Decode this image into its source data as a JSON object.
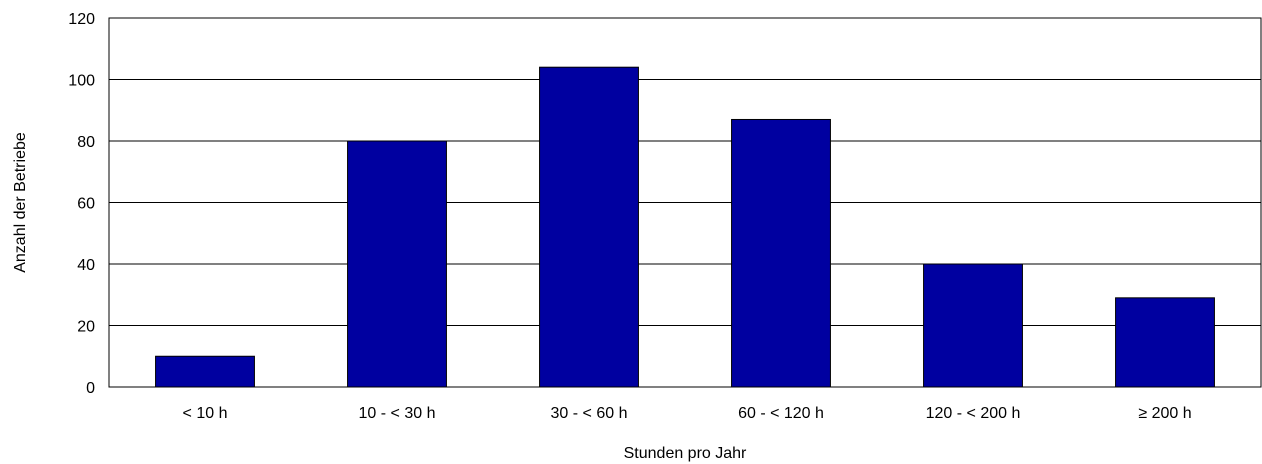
{
  "chart_data": {
    "type": "bar",
    "categories": [
      "< 10 h",
      "10 - < 30 h",
      "30 - < 60 h",
      "60 - < 120 h",
      "120 - < 200 h",
      "≥ 200 h"
    ],
    "values": [
      10,
      80,
      104,
      87,
      40,
      29
    ],
    "xlabel": "Stunden pro Jahr",
    "ylabel": "Anzahl der Betriebe",
    "ylim": [
      0,
      120
    ],
    "yticks": [
      "0",
      "20",
      "40",
      "60",
      "80",
      "100",
      "120"
    ],
    "grid": true,
    "bar_color": "#0000A0"
  }
}
